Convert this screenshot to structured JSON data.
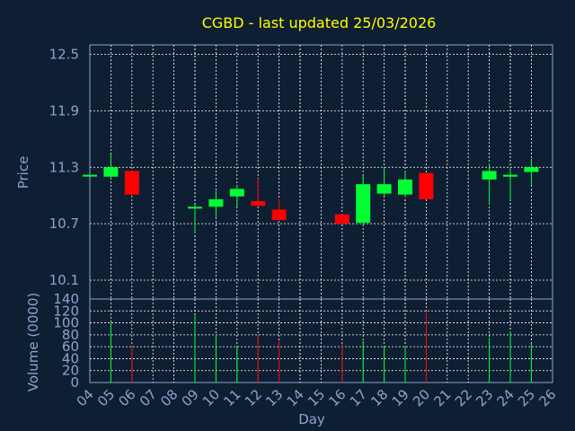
{
  "chart_data": [
    {
      "type": "candlestick",
      "title": "CGBD - last updated 25/03/2026",
      "ylabel": "Price",
      "ylim": [
        9.9,
        12.6
      ],
      "yticks": [
        "10.1",
        "10.7",
        "11.3",
        "11.9",
        "12.5"
      ],
      "grid": true,
      "colors": {
        "up": "#00ff33",
        "down": "#ff0000"
      },
      "candles": [
        {
          "day": "04",
          "open": 11.22,
          "high": 11.22,
          "low": 11.22,
          "close": 11.22
        },
        {
          "day": "05",
          "open": 11.2,
          "high": 11.44,
          "low": 11.18,
          "close": 11.3
        },
        {
          "day": "06",
          "open": 11.26,
          "high": 11.26,
          "low": 11.0,
          "close": 11.01
        },
        {
          "day": "09",
          "open": 10.87,
          "high": 10.9,
          "low": 10.6,
          "close": 10.88
        },
        {
          "day": "10",
          "open": 10.88,
          "high": 11.05,
          "low": 10.76,
          "close": 10.96
        },
        {
          "day": "11",
          "open": 10.99,
          "high": 11.1,
          "low": 10.88,
          "close": 11.07
        },
        {
          "day": "12",
          "open": 10.94,
          "high": 11.18,
          "low": 10.88,
          "close": 10.89
        },
        {
          "day": "13",
          "open": 10.85,
          "high": 10.96,
          "low": 10.75,
          "close": 10.74
        },
        {
          "day": "16",
          "open": 10.8,
          "high": 10.8,
          "low": 10.7,
          "close": 10.7
        },
        {
          "day": "17",
          "open": 10.71,
          "high": 11.22,
          "low": 10.68,
          "close": 11.12
        },
        {
          "day": "18",
          "open": 11.02,
          "high": 11.3,
          "low": 11.0,
          "close": 11.12
        },
        {
          "day": "19",
          "open": 11.01,
          "high": 11.26,
          "low": 10.98,
          "close": 11.17
        },
        {
          "day": "20",
          "open": 11.24,
          "high": 11.24,
          "low": 10.96,
          "close": 10.96
        },
        {
          "day": "23",
          "open": 11.17,
          "high": 11.34,
          "low": 10.9,
          "close": 11.26
        },
        {
          "day": "24",
          "open": 11.2,
          "high": 11.3,
          "low": 10.95,
          "close": 11.22
        },
        {
          "day": "25",
          "open": 11.25,
          "high": 11.39,
          "low": 11.11,
          "close": 11.3
        }
      ]
    },
    {
      "type": "bar",
      "ylabel": "Volume (0000)",
      "xlabel": "Day",
      "ylim": [
        0,
        140
      ],
      "yticks": [
        "0",
        "20",
        "40",
        "60",
        "80",
        "100",
        "120",
        "140"
      ],
      "xticks": [
        "04",
        "05",
        "06",
        "07",
        "08",
        "09",
        "10",
        "11",
        "12",
        "13",
        "14",
        "15",
        "16",
        "17",
        "18",
        "19",
        "20",
        "21",
        "22",
        "23",
        "24",
        "25",
        "26"
      ],
      "grid": true,
      "bars": [
        {
          "day": "05",
          "value": 100,
          "dir": "up"
        },
        {
          "day": "06",
          "value": 62,
          "dir": "down"
        },
        {
          "day": "09",
          "value": 112,
          "dir": "up"
        },
        {
          "day": "10",
          "value": 80,
          "dir": "up"
        },
        {
          "day": "11",
          "value": 62,
          "dir": "up"
        },
        {
          "day": "12",
          "value": 80,
          "dir": "down"
        },
        {
          "day": "13",
          "value": 70,
          "dir": "down"
        },
        {
          "day": "16",
          "value": 65,
          "dir": "down"
        },
        {
          "day": "17",
          "value": 70,
          "dir": "up"
        },
        {
          "day": "18",
          "value": 62,
          "dir": "up"
        },
        {
          "day": "19",
          "value": 62,
          "dir": "up"
        },
        {
          "day": "20",
          "value": 120,
          "dir": "down"
        },
        {
          "day": "23",
          "value": 75,
          "dir": "up"
        },
        {
          "day": "24",
          "value": 85,
          "dir": "up"
        },
        {
          "day": "25",
          "value": 65,
          "dir": "up"
        }
      ]
    }
  ]
}
